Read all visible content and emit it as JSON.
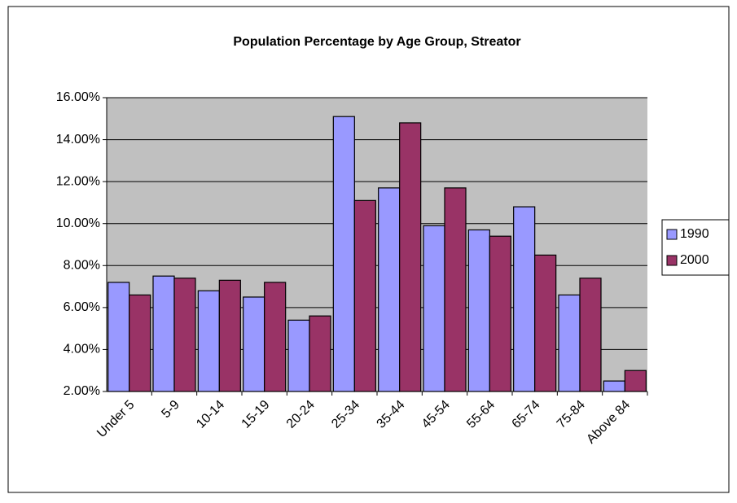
{
  "chart_data": {
    "type": "bar",
    "title": "Population Percentage by Age Group, Streator",
    "categories": [
      "Under 5",
      "5-9",
      "10-14",
      "15-19",
      "20-24",
      "25-34",
      "35-44",
      "45-54",
      "55-64",
      "65-74",
      "75-84",
      "Above 84"
    ],
    "series": [
      {
        "name": "1990",
        "color": "#9999ff",
        "values": [
          7.2,
          7.5,
          6.8,
          6.5,
          5.4,
          15.1,
          11.7,
          9.9,
          9.7,
          10.8,
          6.6,
          2.5
        ]
      },
      {
        "name": "2000",
        "color": "#993366",
        "values": [
          6.6,
          7.4,
          7.3,
          7.2,
          5.6,
          11.1,
          14.8,
          11.7,
          9.4,
          8.5,
          7.4,
          3.0
        ]
      }
    ],
    "ylim": [
      2,
      16
    ],
    "yticks": [
      {
        "value": 2,
        "label": "2.00%"
      },
      {
        "value": 4,
        "label": "4.00%"
      },
      {
        "value": 6,
        "label": "6.00%"
      },
      {
        "value": 8,
        "label": "8.00%"
      },
      {
        "value": 10,
        "label": "10.00%"
      },
      {
        "value": 12,
        "label": "12.00%"
      },
      {
        "value": 14,
        "label": "14.00%"
      },
      {
        "value": 16,
        "label": "16.00%"
      }
    ],
    "grid": true,
    "legend": "right"
  }
}
